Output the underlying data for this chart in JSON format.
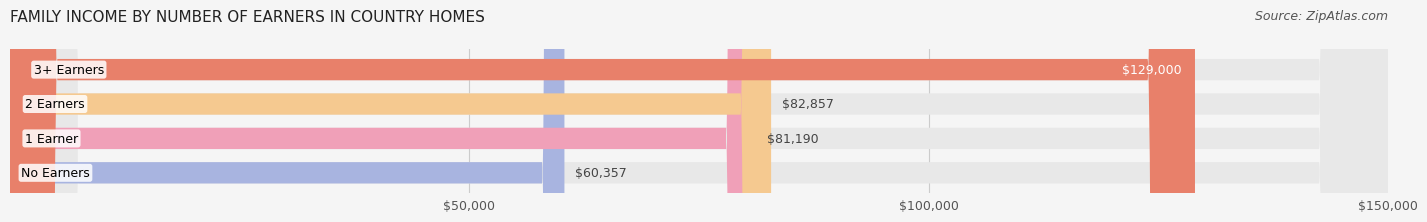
{
  "title": "FAMILY INCOME BY NUMBER OF EARNERS IN COUNTRY HOMES",
  "source": "Source: ZipAtlas.com",
  "categories": [
    "No Earners",
    "1 Earner",
    "2 Earners",
    "3+ Earners"
  ],
  "values": [
    60357,
    81190,
    82857,
    129000
  ],
  "bar_colors": [
    "#a8b4e0",
    "#f0a0b8",
    "#f5c990",
    "#e8806a"
  ],
  "bar_bg_color": "#e8e8e8",
  "label_colors": [
    "#333333",
    "#333333",
    "#333333",
    "#ffffff"
  ],
  "value_labels": [
    "$60,357",
    "$81,190",
    "$82,857",
    "$129,000"
  ],
  "xmin": 0,
  "xmax": 150000,
  "xticks": [
    50000,
    100000,
    150000
  ],
  "xtick_labels": [
    "$50,000",
    "$100,000",
    "$150,000"
  ],
  "background_color": "#f5f5f5",
  "title_fontsize": 11,
  "source_fontsize": 9,
  "bar_label_fontsize": 9,
  "value_label_fontsize": 9,
  "tick_fontsize": 9
}
